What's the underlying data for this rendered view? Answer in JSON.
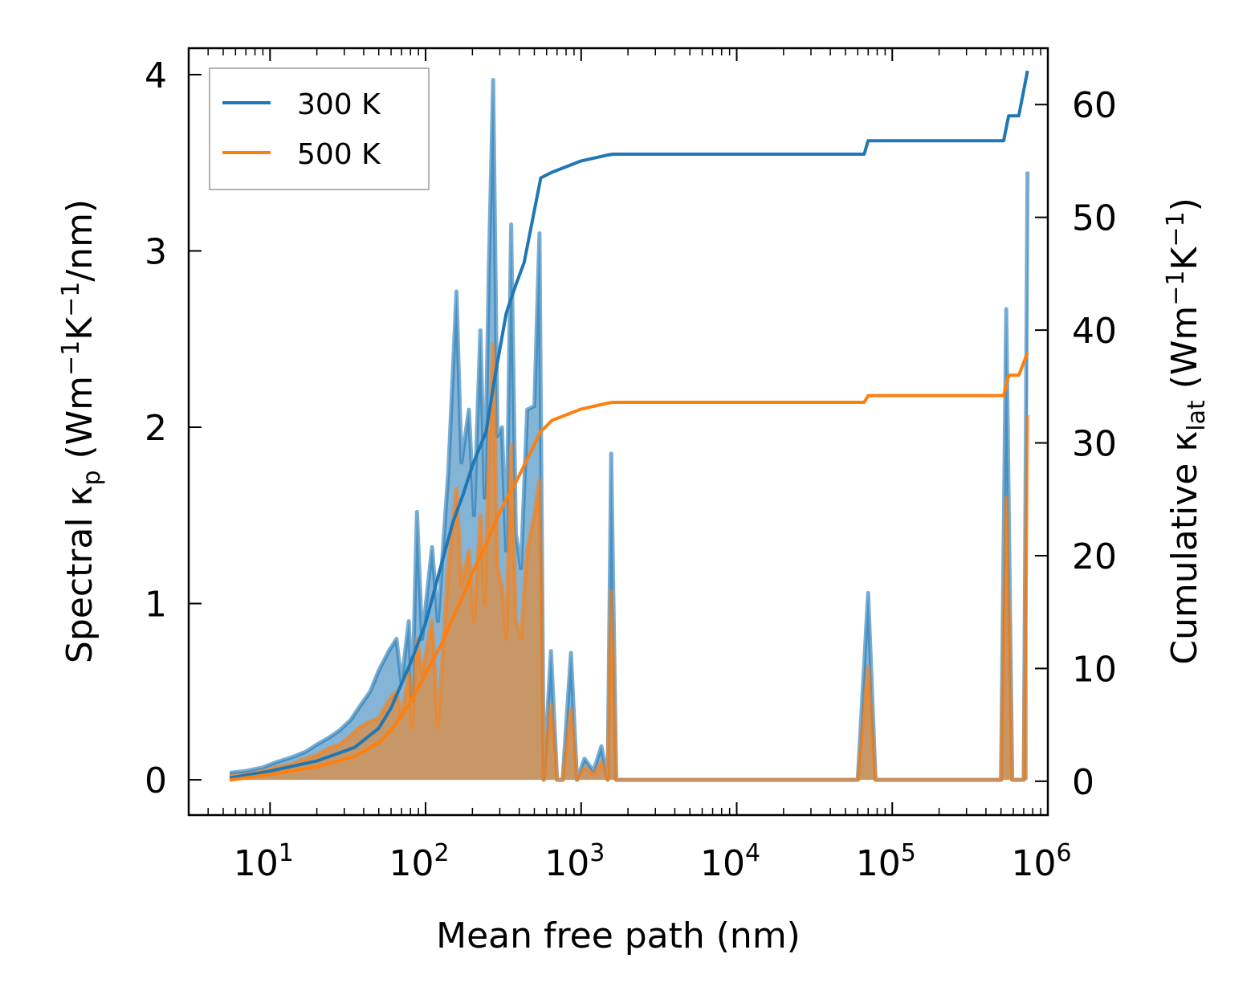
{
  "chart_data": {
    "type": "line",
    "title": "",
    "xlabel": "Mean free path (nm)",
    "ylabel_left": "Spectral κp (Wm⁻¹K⁻¹/nm)",
    "ylabel_right": "Cumulative κlat (Wm⁻¹K⁻¹)",
    "xscale": "log",
    "xlim": [
      3,
      1000000
    ],
    "ylim_left": [
      -0.2,
      4.15
    ],
    "ylim_right": [
      -3,
      65
    ],
    "x_ticks": [
      {
        "value": 10,
        "base": "10",
        "exp": "1"
      },
      {
        "value": 100,
        "base": "10",
        "exp": "2"
      },
      {
        "value": 1000,
        "base": "10",
        "exp": "3"
      },
      {
        "value": 10000,
        "base": "10",
        "exp": "4"
      },
      {
        "value": 100000,
        "base": "10",
        "exp": "5"
      },
      {
        "value": 1000000,
        "base": "10",
        "exp": "6"
      }
    ],
    "y_left_ticks": [
      "0",
      "1",
      "2",
      "3",
      "4"
    ],
    "y_right_ticks": [
      "0",
      "10",
      "20",
      "30",
      "40",
      "50",
      "60"
    ],
    "legend": {
      "position": "top-left",
      "entries": [
        "300 K",
        "500 K"
      ]
    },
    "series": [
      {
        "name": "300 K",
        "color": "#1f77b4",
        "spectral": [
          [
            5.5,
            0.04
          ],
          [
            7,
            0.05
          ],
          [
            9,
            0.07
          ],
          [
            11,
            0.1
          ],
          [
            14,
            0.13
          ],
          [
            17,
            0.16
          ],
          [
            20,
            0.2
          ],
          [
            24,
            0.24
          ],
          [
            28,
            0.28
          ],
          [
            33,
            0.34
          ],
          [
            38,
            0.42
          ],
          [
            44,
            0.5
          ],
          [
            50,
            0.62
          ],
          [
            58,
            0.73
          ],
          [
            65,
            0.8
          ],
          [
            70,
            0.55
          ],
          [
            78,
            0.9
          ],
          [
            82,
            0.45
          ],
          [
            88,
            1.52
          ],
          [
            95,
            0.8
          ],
          [
            110,
            1.32
          ],
          [
            120,
            0.9
          ],
          [
            140,
            1.75
          ],
          [
            158,
            2.77
          ],
          [
            170,
            1.8
          ],
          [
            190,
            2.1
          ],
          [
            205,
            1.5
          ],
          [
            225,
            2.55
          ],
          [
            240,
            1.6
          ],
          [
            255,
            2.9
          ],
          [
            272,
            3.97
          ],
          [
            290,
            1.95
          ],
          [
            310,
            2.0
          ],
          [
            330,
            1.3
          ],
          [
            355,
            3.15
          ],
          [
            380,
            1.4
          ],
          [
            410,
            1.2
          ],
          [
            450,
            2.1
          ],
          [
            500,
            2.12
          ],
          [
            540,
            3.1
          ],
          [
            575,
            0.0
          ],
          [
            640,
            0.73
          ],
          [
            700,
            0.0
          ],
          [
            760,
            0.0
          ],
          [
            860,
            0.72
          ],
          [
            940,
            0.0
          ],
          [
            1050,
            0.12
          ],
          [
            1200,
            0.05
          ],
          [
            1350,
            0.19
          ],
          [
            1480,
            0.0
          ],
          [
            1560,
            1.85
          ],
          [
            1680,
            0.0
          ],
          [
            60000,
            0.0
          ],
          [
            70000,
            1.06
          ],
          [
            78000,
            0.0
          ],
          [
            500000,
            0.0
          ],
          [
            540000,
            2.67
          ],
          [
            590000,
            0.0
          ],
          [
            700000,
            0.0
          ],
          [
            740000,
            3.45
          ]
        ],
        "cumulative": [
          [
            5.5,
            0.3
          ],
          [
            10,
            0.9
          ],
          [
            20,
            1.8
          ],
          [
            35,
            3.0
          ],
          [
            50,
            4.7
          ],
          [
            60,
            6.5
          ],
          [
            80,
            10.5
          ],
          [
            100,
            14.0
          ],
          [
            125,
            19.0
          ],
          [
            150,
            23.0
          ],
          [
            175,
            25.5
          ],
          [
            200,
            28.0
          ],
          [
            245,
            31.0
          ],
          [
            280,
            36.0
          ],
          [
            330,
            41.5
          ],
          [
            380,
            44.0
          ],
          [
            430,
            46.0
          ],
          [
            550,
            53.5
          ],
          [
            650,
            54.0
          ],
          [
            1000,
            55.0
          ],
          [
            1450,
            55.5
          ],
          [
            1600,
            55.6
          ],
          [
            66000,
            55.6
          ],
          [
            70000,
            56.8
          ],
          [
            520000,
            56.8
          ],
          [
            560000,
            59.0
          ],
          [
            650000,
            59.0
          ],
          [
            740000,
            63.0
          ]
        ]
      },
      {
        "name": "500 K",
        "color": "#ff7f0e",
        "spectral": [
          [
            5.5,
            0.02
          ],
          [
            7,
            0.03
          ],
          [
            9,
            0.05
          ],
          [
            11,
            0.07
          ],
          [
            14,
            0.09
          ],
          [
            17,
            0.12
          ],
          [
            20,
            0.14
          ],
          [
            24,
            0.18
          ],
          [
            28,
            0.2
          ],
          [
            33,
            0.25
          ],
          [
            38,
            0.3
          ],
          [
            44,
            0.33
          ],
          [
            50,
            0.35
          ],
          [
            58,
            0.45
          ],
          [
            65,
            0.5
          ],
          [
            70,
            0.35
          ],
          [
            78,
            0.6
          ],
          [
            82,
            0.3
          ],
          [
            88,
            0.8
          ],
          [
            95,
            0.6
          ],
          [
            110,
            0.9
          ],
          [
            120,
            0.3
          ],
          [
            140,
            1.2
          ],
          [
            158,
            1.65
          ],
          [
            170,
            1.1
          ],
          [
            190,
            1.3
          ],
          [
            205,
            0.9
          ],
          [
            225,
            1.5
          ],
          [
            240,
            1.0
          ],
          [
            255,
            1.8
          ],
          [
            272,
            2.47
          ],
          [
            290,
            1.2
          ],
          [
            310,
            1.1
          ],
          [
            330,
            0.8
          ],
          [
            355,
            1.9
          ],
          [
            380,
            0.9
          ],
          [
            410,
            0.8
          ],
          [
            450,
            1.3
          ],
          [
            500,
            1.5
          ],
          [
            540,
            1.7
          ],
          [
            575,
            0.0
          ],
          [
            640,
            0.43
          ],
          [
            700,
            0.0
          ],
          [
            760,
            0.0
          ],
          [
            860,
            0.4
          ],
          [
            940,
            0.0
          ],
          [
            1050,
            0.07
          ],
          [
            1200,
            0.03
          ],
          [
            1350,
            0.1
          ],
          [
            1480,
            0.0
          ],
          [
            1560,
            1.07
          ],
          [
            1680,
            0.0
          ],
          [
            60000,
            0.0
          ],
          [
            70000,
            0.64
          ],
          [
            78000,
            0.0
          ],
          [
            500000,
            0.0
          ],
          [
            540000,
            1.6
          ],
          [
            590000,
            0.0
          ],
          [
            700000,
            0.0
          ],
          [
            740000,
            2.07
          ]
        ],
        "cumulative": [
          [
            5.5,
            0.1
          ],
          [
            10,
            0.6
          ],
          [
            20,
            1.3
          ],
          [
            35,
            2.2
          ],
          [
            50,
            3.4
          ],
          [
            60,
            4.5
          ],
          [
            80,
            7.0
          ],
          [
            100,
            9.5
          ],
          [
            125,
            12.0
          ],
          [
            150,
            14.5
          ],
          [
            175,
            16.5
          ],
          [
            200,
            18.5
          ],
          [
            245,
            21.0
          ],
          [
            280,
            23.0
          ],
          [
            330,
            25.0
          ],
          [
            380,
            26.5
          ],
          [
            430,
            28.0
          ],
          [
            550,
            31.0
          ],
          [
            650,
            32.0
          ],
          [
            1000,
            33.0
          ],
          [
            1450,
            33.5
          ],
          [
            1600,
            33.6
          ],
          [
            66000,
            33.6
          ],
          [
            70000,
            34.2
          ],
          [
            520000,
            34.2
          ],
          [
            560000,
            36.0
          ],
          [
            650000,
            36.0
          ],
          [
            740000,
            38.0
          ]
        ]
      }
    ]
  }
}
